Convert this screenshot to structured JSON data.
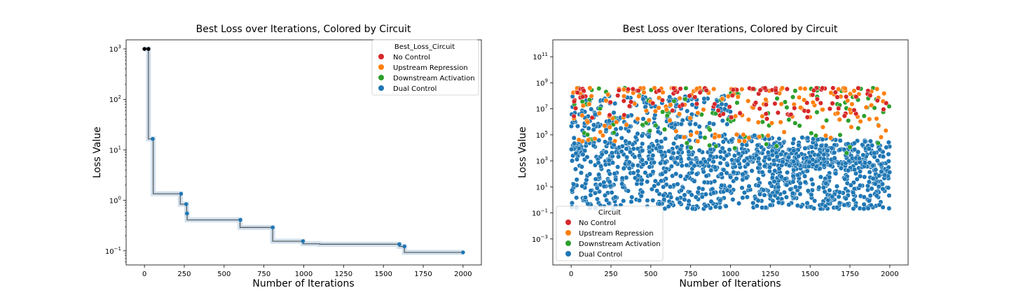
{
  "chart_data": [
    {
      "type": "line",
      "title": "Best Loss over Iterations, Colored by Circuit",
      "xlabel": "Number of Iterations",
      "ylabel": "Loss Value",
      "xlim": [
        -115,
        2115
      ],
      "ylim_log10": [
        -1.28,
        3.18
      ],
      "y_scale": "log",
      "x_ticks": [
        {
          "value": 0,
          "label": "0"
        },
        {
          "value": 250,
          "label": "250"
        },
        {
          "value": 500,
          "label": "500"
        },
        {
          "value": 750,
          "label": "750"
        },
        {
          "value": 1000,
          "label": "1000"
        },
        {
          "value": 1250,
          "label": "1250"
        },
        {
          "value": 1500,
          "label": "1500"
        },
        {
          "value": 1750,
          "label": "1750"
        },
        {
          "value": 2000,
          "label": "2000"
        }
      ],
      "y_ticks": [
        {
          "exp": -1,
          "base": "10",
          "sup": "−1"
        },
        {
          "exp": 0,
          "base": "10",
          "sup": "0"
        },
        {
          "exp": 1,
          "base": "10",
          "sup": "1"
        },
        {
          "exp": 2,
          "base": "10",
          "sup": "2"
        },
        {
          "exp": 3,
          "base": "10",
          "sup": "3"
        }
      ],
      "legend_title": "Best_Loss_Circuit",
      "legend_position": "top-right",
      "series": [
        {
          "name": "No Control",
          "color": "#d62728"
        },
        {
          "name": "Upstream Repression",
          "color": "#ff7f0e"
        },
        {
          "name": "Downstream Activation",
          "color": "#2ca02c"
        },
        {
          "name": "Dual Control",
          "color": "#1f77b4"
        }
      ],
      "line_color": "#555555",
      "band_color": "#a9c4dc",
      "steps": [
        {
          "x": 0,
          "y": 1000
        },
        {
          "x": 25,
          "y": 16.5
        },
        {
          "x": 55,
          "y": 1.35
        },
        {
          "x": 225,
          "y": 0.84
        },
        {
          "x": 265,
          "y": 0.55
        },
        {
          "x": 268,
          "y": 0.41
        },
        {
          "x": 600,
          "y": 0.29
        },
        {
          "x": 805,
          "y": 0.155
        },
        {
          "x": 995,
          "y": 0.138
        },
        {
          "x": 1100,
          "y": 0.135
        },
        {
          "x": 1600,
          "y": 0.122
        },
        {
          "x": 1632,
          "y": 0.093
        },
        {
          "x": 2000,
          "y": 0.093
        }
      ],
      "points": [
        {
          "x": 0,
          "y": 1000,
          "color": "#000000"
        },
        {
          "x": 25,
          "y": 1000,
          "color": "#000000"
        },
        {
          "x": 52,
          "y": 16.5,
          "color": "#1f77b4"
        },
        {
          "x": 230,
          "y": 1.35,
          "color": "#1f77b4"
        },
        {
          "x": 262,
          "y": 0.84,
          "color": "#1f77b4"
        },
        {
          "x": 267,
          "y": 0.55,
          "color": "#1f77b4"
        },
        {
          "x": 602,
          "y": 0.41,
          "color": "#1f77b4"
        },
        {
          "x": 805,
          "y": 0.29,
          "color": "#1f77b4"
        },
        {
          "x": 995,
          "y": 0.155,
          "color": "#1f77b4"
        },
        {
          "x": 1600,
          "y": 0.135,
          "color": "#1f77b4"
        },
        {
          "x": 1632,
          "y": 0.122,
          "color": "#1f77b4"
        },
        {
          "x": 2000,
          "y": 0.093,
          "color": "#1f77b4"
        }
      ]
    },
    {
      "type": "scatter",
      "title": "Best Loss over Iterations, Colored by Circuit",
      "xlabel": "Number of Iterations",
      "ylabel": "Loss Value",
      "xlim": [
        -115,
        2115
      ],
      "ylim_log10": [
        -5.0,
        12.3
      ],
      "y_scale": "log",
      "x_ticks": [
        {
          "value": 0,
          "label": "0"
        },
        {
          "value": 250,
          "label": "250"
        },
        {
          "value": 500,
          "label": "500"
        },
        {
          "value": 750,
          "label": "750"
        },
        {
          "value": 1000,
          "label": "1000"
        },
        {
          "value": 1250,
          "label": "1250"
        },
        {
          "value": 1500,
          "label": "1500"
        },
        {
          "value": 1750,
          "label": "1750"
        },
        {
          "value": 2000,
          "label": "2000"
        }
      ],
      "y_ticks": [
        {
          "exp": -3,
          "base": "10",
          "sup": "−3"
        },
        {
          "exp": -1,
          "base": "10",
          "sup": "−1"
        },
        {
          "exp": 1,
          "base": "10",
          "sup": "1"
        },
        {
          "exp": 3,
          "base": "10",
          "sup": "3"
        },
        {
          "exp": 5,
          "base": "10",
          "sup": "5"
        },
        {
          "exp": 7,
          "base": "10",
          "sup": "7"
        },
        {
          "exp": 9,
          "base": "10",
          "sup": "9"
        },
        {
          "exp": 11,
          "base": "10",
          "sup": "11"
        }
      ],
      "legend_title": "Circuit",
      "legend_position": "lower-left",
      "series": [
        {
          "name": "No Control",
          "color": "#d62728"
        },
        {
          "name": "Upstream Repression",
          "color": "#ff7f0e"
        },
        {
          "name": "Downstream Activation",
          "color": "#2ca02c"
        },
        {
          "name": "Dual Control",
          "color": "#1f77b4"
        }
      ],
      "x_range": [
        0,
        2000
      ],
      "series_log10_range": {
        "No Control": [
          6.2,
          8.6
        ],
        "Upstream Repression": [
          4.5,
          8.6
        ],
        "Downstream Activation": [
          3.5,
          8.6
        ],
        "Dual Control": [
          -0.7,
          8.0
        ]
      }
    }
  ]
}
